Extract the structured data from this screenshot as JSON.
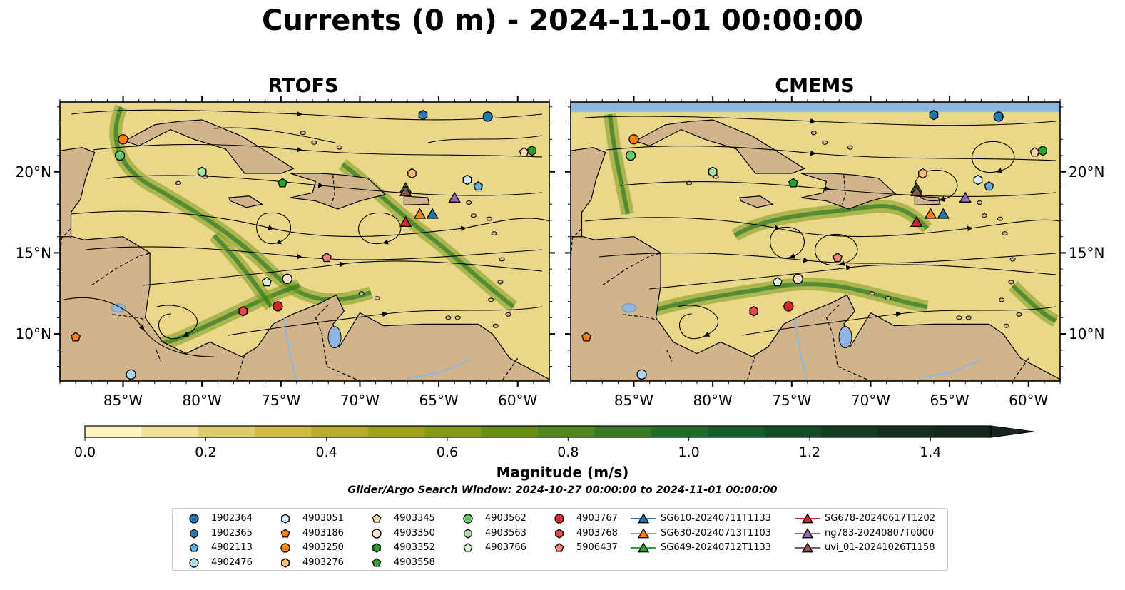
{
  "title": "Currents (0 m) - 2024-11-01 00:00:00",
  "panels": [
    {
      "title": "RTOFS"
    },
    {
      "title": "CMEMS"
    }
  ],
  "axes": {
    "x_ticks": [
      "85°W",
      "80°W",
      "75°W",
      "70°W",
      "65°W",
      "60°W"
    ],
    "y_ticks": [
      "20°N",
      "15°N",
      "10°N"
    ]
  },
  "colorbar": {
    "label": "Magnitude (m/s)",
    "ticks": [
      "0.0",
      "0.2",
      "0.4",
      "0.6",
      "0.8",
      "1.0",
      "1.2",
      "1.4"
    ],
    "colors": [
      "#fcf5c0",
      "#efe09a",
      "#e0cc6f",
      "#cfba4a",
      "#b9ab2c",
      "#9fa21b",
      "#84991a",
      "#679019",
      "#4f861f",
      "#387a24",
      "#226c2a",
      "#175d2a",
      "#124d27",
      "#123d22",
      "#14301c",
      "#16261a"
    ]
  },
  "window_text": "Glider/Argo Search Window: 2024-10-27 00:00:00 to 2024-11-01 00:00:00",
  "colors": {
    "land": "#d1b48c",
    "water_body": "#8fb6e0",
    "blue": "#1f77b4",
    "light_blue": "#5dade2",
    "pale_blue": "#aed6f1",
    "orange": "#ff7f0e",
    "light_orange": "#ffbb78",
    "pale_orange": "#fde0c5",
    "green": "#2ca02c",
    "light_green": "#66c96a",
    "pale_green": "#c7e9c0",
    "red": "#d62728",
    "light_red": "#e8474c",
    "pink": "#f08080",
    "purple": "#9467bd",
    "brown": "#8c564b"
  },
  "legend": [
    {
      "label": "1902364",
      "marker": "circle",
      "color": "#1f77b4"
    },
    {
      "label": "1902365",
      "marker": "hexagon",
      "color": "#1f77b4"
    },
    {
      "label": "4902113",
      "marker": "pentagon",
      "color": "#5dade2"
    },
    {
      "label": "4902476",
      "marker": "circle",
      "color": "#aed6f1"
    },
    {
      "label": "4903051",
      "marker": "hexagon",
      "color": "#d6eaf8"
    },
    {
      "label": "4903186",
      "marker": "pentagon",
      "color": "#ff7f0e"
    },
    {
      "label": "4903250",
      "marker": "circle",
      "color": "#ff7f0e"
    },
    {
      "label": "4903276",
      "marker": "hexagon",
      "color": "#ffbb78"
    },
    {
      "label": "4903345",
      "marker": "pentagon",
      "color": "#ffd8a8"
    },
    {
      "label": "4903350",
      "marker": "circle",
      "color": "#fde0c5"
    },
    {
      "label": "4903352",
      "marker": "hexagon",
      "color": "#2ca02c"
    },
    {
      "label": "4903558",
      "marker": "pentagon",
      "color": "#2ca02c"
    },
    {
      "label": "4903562",
      "marker": "circle",
      "color": "#66c96a"
    },
    {
      "label": "4903563",
      "marker": "hexagon",
      "color": "#a8e0a0"
    },
    {
      "label": "4903766",
      "marker": "pentagon",
      "color": "#d9f2d0"
    },
    {
      "label": "4903767",
      "marker": "circle",
      "color": "#d62728"
    },
    {
      "label": "4903768",
      "marker": "hexagon",
      "color": "#e8474c"
    },
    {
      "label": "5906437",
      "marker": "pentagon",
      "color": "#f08080"
    },
    {
      "label": "SG610-20240711T1133",
      "marker": "triangle",
      "color": "#1f77b4"
    },
    {
      "label": "SG630-20240713T1103",
      "marker": "triangle",
      "color": "#ff7f0e"
    },
    {
      "label": "SG649-20240712T1133",
      "marker": "triangle",
      "color": "#2ca02c"
    },
    {
      "label": "SG678-20240617T1202",
      "marker": "triangle",
      "color": "#d62728"
    },
    {
      "label": "ng783-20240807T0000",
      "marker": "triangle",
      "color": "#9467bd"
    },
    {
      "label": "uvi_01-20241026T1158",
      "marker": "triangle",
      "color": "#8c564b"
    }
  ],
  "observations": [
    {
      "id": "1902364",
      "lon": -61.9,
      "lat": 23.4
    },
    {
      "id": "1902365",
      "lon": -66.0,
      "lat": 23.5
    },
    {
      "id": "4902113",
      "lon": -62.5,
      "lat": 19.1
    },
    {
      "id": "4902476",
      "lon": -84.5,
      "lat": 7.5
    },
    {
      "id": "4903051",
      "lon": -63.2,
      "lat": 19.5
    },
    {
      "id": "4903186",
      "lon": -88.0,
      "lat": 9.8
    },
    {
      "id": "4903250",
      "lon": -85.0,
      "lat": 22.0
    },
    {
      "id": "4903276",
      "lon": -66.7,
      "lat": 19.9
    },
    {
      "id": "4903345",
      "lon": -59.6,
      "lat": 21.2
    },
    {
      "id": "4903350",
      "lon": -74.6,
      "lat": 13.4
    },
    {
      "id": "4903352",
      "lon": -59.1,
      "lat": 21.3
    },
    {
      "id": "4903558",
      "lon": -74.9,
      "lat": 19.3
    },
    {
      "id": "4903562",
      "lon": -85.2,
      "lat": 21.0
    },
    {
      "id": "4903563",
      "lon": -80.0,
      "lat": 20.0
    },
    {
      "id": "4903766",
      "lon": -75.9,
      "lat": 13.2
    },
    {
      "id": "4903767",
      "lon": -75.2,
      "lat": 11.7
    },
    {
      "id": "4903768",
      "lon": -77.4,
      "lat": 11.4
    },
    {
      "id": "5906437",
      "lon": -72.1,
      "lat": 14.7
    },
    {
      "id": "SG610-20240711T1133",
      "lon": -65.4,
      "lat": 17.4
    },
    {
      "id": "SG630-20240713T1103",
      "lon": -66.2,
      "lat": 17.4
    },
    {
      "id": "SG649-20240712T1133",
      "lon": -67.1,
      "lat": 19.0
    },
    {
      "id": "SG678-20240617T1202",
      "lon": -67.1,
      "lat": 16.9
    },
    {
      "id": "ng783-20240807T0000",
      "lon": -64.0,
      "lat": 18.4
    },
    {
      "id": "uvi_01-20241026T1158",
      "lon": -67.1,
      "lat": 18.8
    }
  ]
}
